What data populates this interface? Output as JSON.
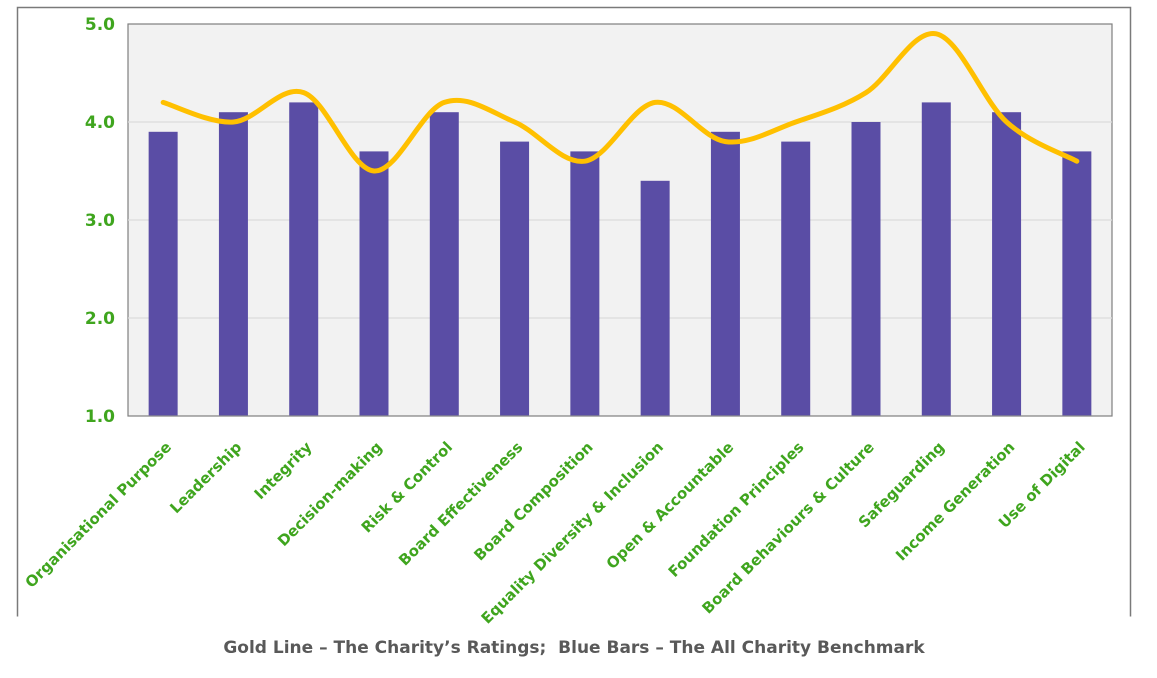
{
  "caption": "Gold Line – The Charity’s Ratings;  Blue Bars – The All Charity Benchmark",
  "chart_data": {
    "type": "bar",
    "subtype": "bar-with-smoothed-line-overlay",
    "categories": [
      "Organisational Purpose",
      "Leadership",
      "Integrity",
      "Decision-making",
      "Risk & Control",
      "Board Effectiveness",
      "Board Composition",
      "Equality Diversity & Inclusion",
      "Open & Accountable",
      "Foundation Principles",
      "Board Behaviours & Culture",
      "Safeguarding",
      "Income Generation",
      "Use of Digital"
    ],
    "series": [
      {
        "name": "The All Charity Benchmark",
        "type": "bar",
        "color": "#5a4da5",
        "values": [
          3.9,
          4.1,
          4.2,
          3.7,
          4.1,
          3.8,
          3.7,
          3.4,
          3.9,
          3.8,
          4.0,
          4.2,
          4.1,
          3.7
        ]
      },
      {
        "name": "The Charity’s Ratings",
        "type": "line",
        "smoothed": true,
        "color": "#ffc000",
        "values": [
          4.2,
          4.0,
          4.3,
          3.5,
          4.2,
          4.0,
          3.6,
          4.2,
          3.8,
          4.0,
          4.3,
          4.9,
          4.0,
          3.6
        ]
      }
    ],
    "title": "",
    "xlabel": "",
    "ylabel": "",
    "ylim": [
      1.0,
      5.0
    ],
    "yticks": [
      "1.0",
      "2.0",
      "3.0",
      "4.0",
      "5.0"
    ],
    "grid": true,
    "legend_position": "none",
    "colors": {
      "axis_label_green": "#3fa51e",
      "plot_background": "#f2f2f2",
      "gridline": "#dcdcdc",
      "plot_border": "#7f7f7f",
      "frame_border": "#7a7a7a",
      "caption_gray": "#595959"
    }
  }
}
